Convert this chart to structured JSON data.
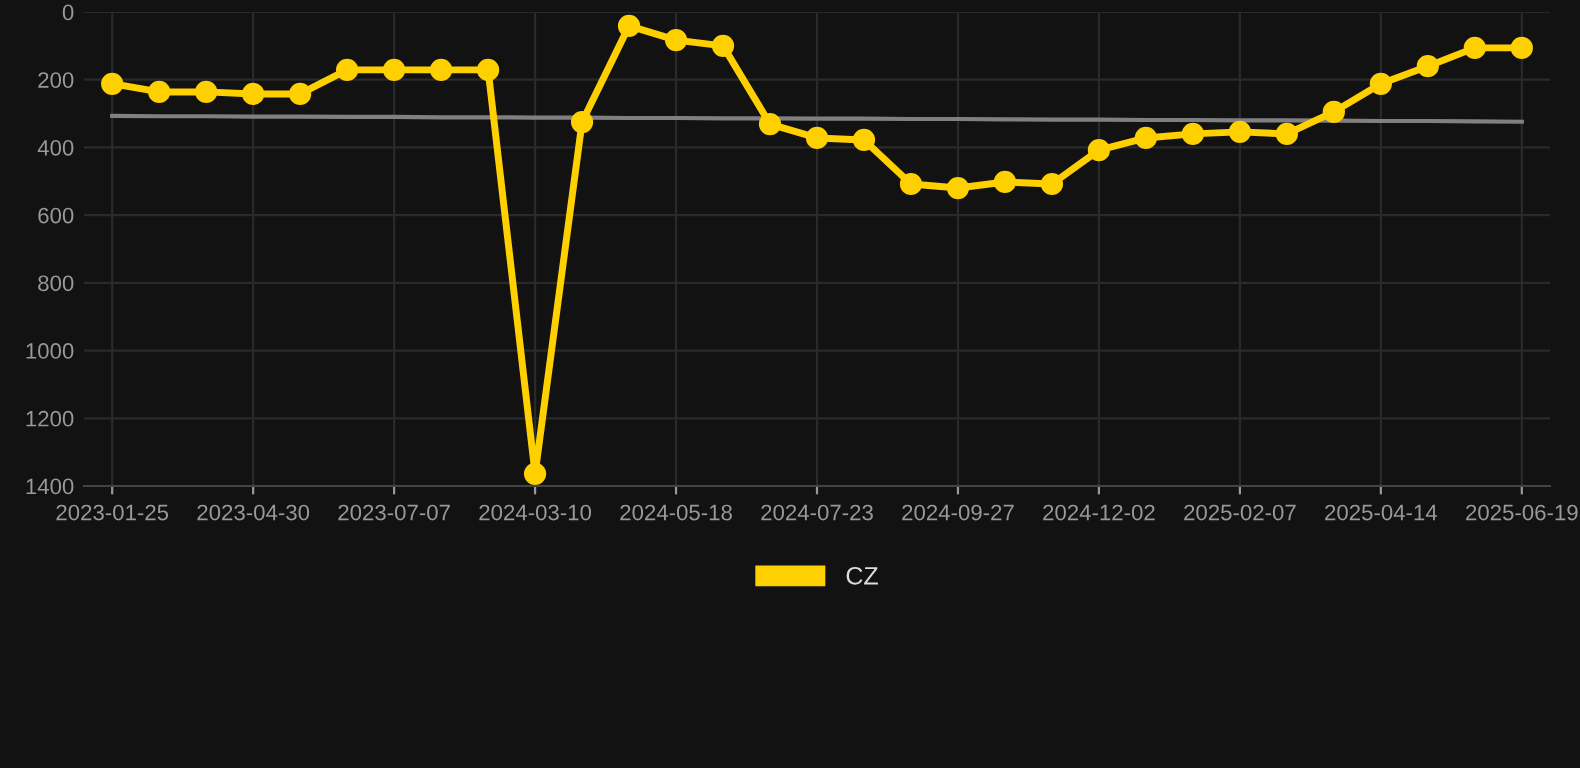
{
  "chart_data": {
    "type": "line",
    "categories": [
      "2023-01-25",
      null,
      null,
      "2023-04-30",
      null,
      null,
      "2023-07-07",
      null,
      null,
      "2024-03-10",
      null,
      null,
      "2024-05-18",
      null,
      null,
      "2024-07-23",
      null,
      null,
      "2024-09-27",
      null,
      null,
      "2024-12-02",
      null,
      null,
      "2025-02-07",
      null,
      null,
      "2025-04-14",
      null,
      null,
      "2025-06-19"
    ],
    "series": [
      {
        "name": "CZ",
        "color": "#ffd000",
        "marker": "circle",
        "values": [
          212,
          236,
          236,
          242,
          242,
          171,
          171,
          171,
          171,
          1364,
          325,
          41,
          83,
          100,
          331,
          372,
          378,
          508,
          520,
          502,
          508,
          408,
          372,
          360,
          354,
          360,
          295,
          212,
          160,
          106,
          106
        ]
      },
      {
        "type": "line",
        "color": "#808080",
        "marker": "none",
        "values": [
          307,
          308,
          308,
          309,
          309,
          310,
          310,
          311,
          311,
          312,
          312,
          313,
          313,
          314,
          314,
          315,
          315,
          316,
          316,
          317,
          318,
          318,
          319,
          319,
          320,
          320,
          321,
          322,
          322,
          323,
          324
        ]
      }
    ],
    "ylim": [
      1400,
      0
    ],
    "yticks": [
      0,
      200,
      400,
      600,
      800,
      1000,
      1200,
      1400
    ],
    "grid": true,
    "legend": "bottom",
    "line_style": "solid"
  }
}
